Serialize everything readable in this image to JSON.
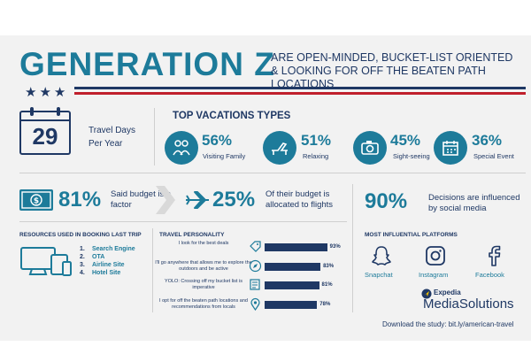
{
  "header": {
    "title": "GENERATION Z",
    "subtitle": "ARE OPEN-MINDED, BUCKET-LIST ORIENTED & LOOKING FOR OFF THE BEATEN PATH LOCATIONS",
    "stars": "★★★"
  },
  "travel_days": {
    "value": "29",
    "label": "Travel Days Per Year"
  },
  "vacations": {
    "title": "TOP VACATIONS TYPES",
    "items": [
      {
        "pct": "56%",
        "label": "Visiting Family",
        "icon": "family-icon"
      },
      {
        "pct": "51%",
        "label": "Relaxing",
        "icon": "lounge-chair-icon"
      },
      {
        "pct": "45%",
        "label": "Sight-seeing",
        "icon": "camera-icon"
      },
      {
        "pct": "36%",
        "label": "Special Event",
        "icon": "calendar-icon"
      }
    ]
  },
  "budget": {
    "pct": "81%",
    "text": "Said budget is a factor",
    "flights_pct": "25%",
    "flights_text": "Of their budget is allocated to flights"
  },
  "social": {
    "pct": "90%",
    "text": "Decisions are influenced by social media"
  },
  "resources": {
    "title": "RESOURCES USED IN BOOKING LAST TRIP",
    "items": [
      {
        "num": "1.",
        "label": "Search Engine"
      },
      {
        "num": "2.",
        "label": "OTA"
      },
      {
        "num": "3.",
        "label": "Airline Site"
      },
      {
        "num": "4.",
        "label": "Hotel Site"
      }
    ]
  },
  "personality": {
    "title": "TRAVEL PERSONALITY",
    "items": [
      {
        "text": "I look for the best deals",
        "value": 93,
        "label": "93%",
        "icon": "price-tag-icon"
      },
      {
        "text": "I'll go anywhere that allows me to explore the outdoors and be active",
        "value": 83,
        "label": "83%",
        "icon": "compass-icon"
      },
      {
        "text": "YOLO: Crossing off my bucket list is imperative",
        "value": 81,
        "label": "81%",
        "icon": "checklist-icon"
      },
      {
        "text": "I opt for off the beaten path locations and recommendations from locals",
        "value": 78,
        "label": "78%",
        "icon": "map-pin-icon"
      }
    ]
  },
  "platforms": {
    "title": "MOST INFLUENTIAL PLATFORMS",
    "items": [
      {
        "label": "Snapchat",
        "icon": "snapchat-icon"
      },
      {
        "label": "Instagram",
        "icon": "instagram-icon"
      },
      {
        "label": "Facebook",
        "icon": "facebook-icon"
      }
    ]
  },
  "brand": {
    "line1": "Expedia",
    "line2": "MediaSolutions"
  },
  "download": "Download the study: bit.ly/american-travel",
  "colors": {
    "teal": "#1d7b9a",
    "navy": "#1f3864",
    "red": "#c0202c",
    "background": "#f2f2f2"
  }
}
